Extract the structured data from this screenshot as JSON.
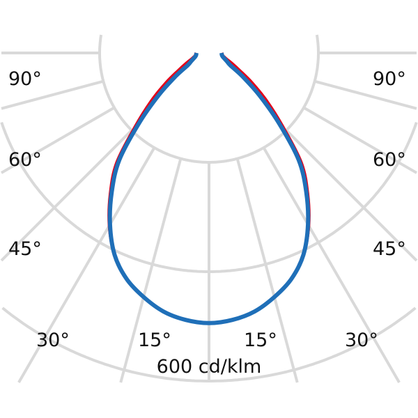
{
  "chart_data": {
    "type": "polar",
    "unit_label": "600 cd/klm",
    "radial_range": [
      0,
      600
    ],
    "rings": [
      200,
      400,
      600
    ],
    "angle_step_deg": 15,
    "angle_labels_left": [
      "90°",
      "60°",
      "45°",
      "30°",
      "15°"
    ],
    "angle_labels_right": [
      "15°",
      "30°",
      "45°",
      "60°",
      "90°"
    ],
    "grid": true,
    "colors": {
      "grid": "#d9d9d9",
      "series_1": "#e2001a",
      "series_2": "#1f6fb8"
    },
    "angles": [
      0,
      5,
      10,
      15,
      20,
      25,
      30,
      35,
      40,
      45,
      50,
      55,
      60,
      65,
      70,
      75,
      80,
      90
    ],
    "series": [
      {
        "color": "#e2001a",
        "values": [
          494,
          490,
          480,
          462,
          440,
          408,
          364,
          314,
          262,
          190,
          138,
          96,
          64,
          46,
          34,
          28,
          25,
          23
        ]
      },
      {
        "color": "#1f6fb8",
        "values": [
          494,
          490,
          480,
          462,
          440,
          408,
          362,
          310,
          255,
          180,
          120,
          75,
          45,
          36,
          30,
          26,
          24,
          23
        ]
      }
    ]
  }
}
